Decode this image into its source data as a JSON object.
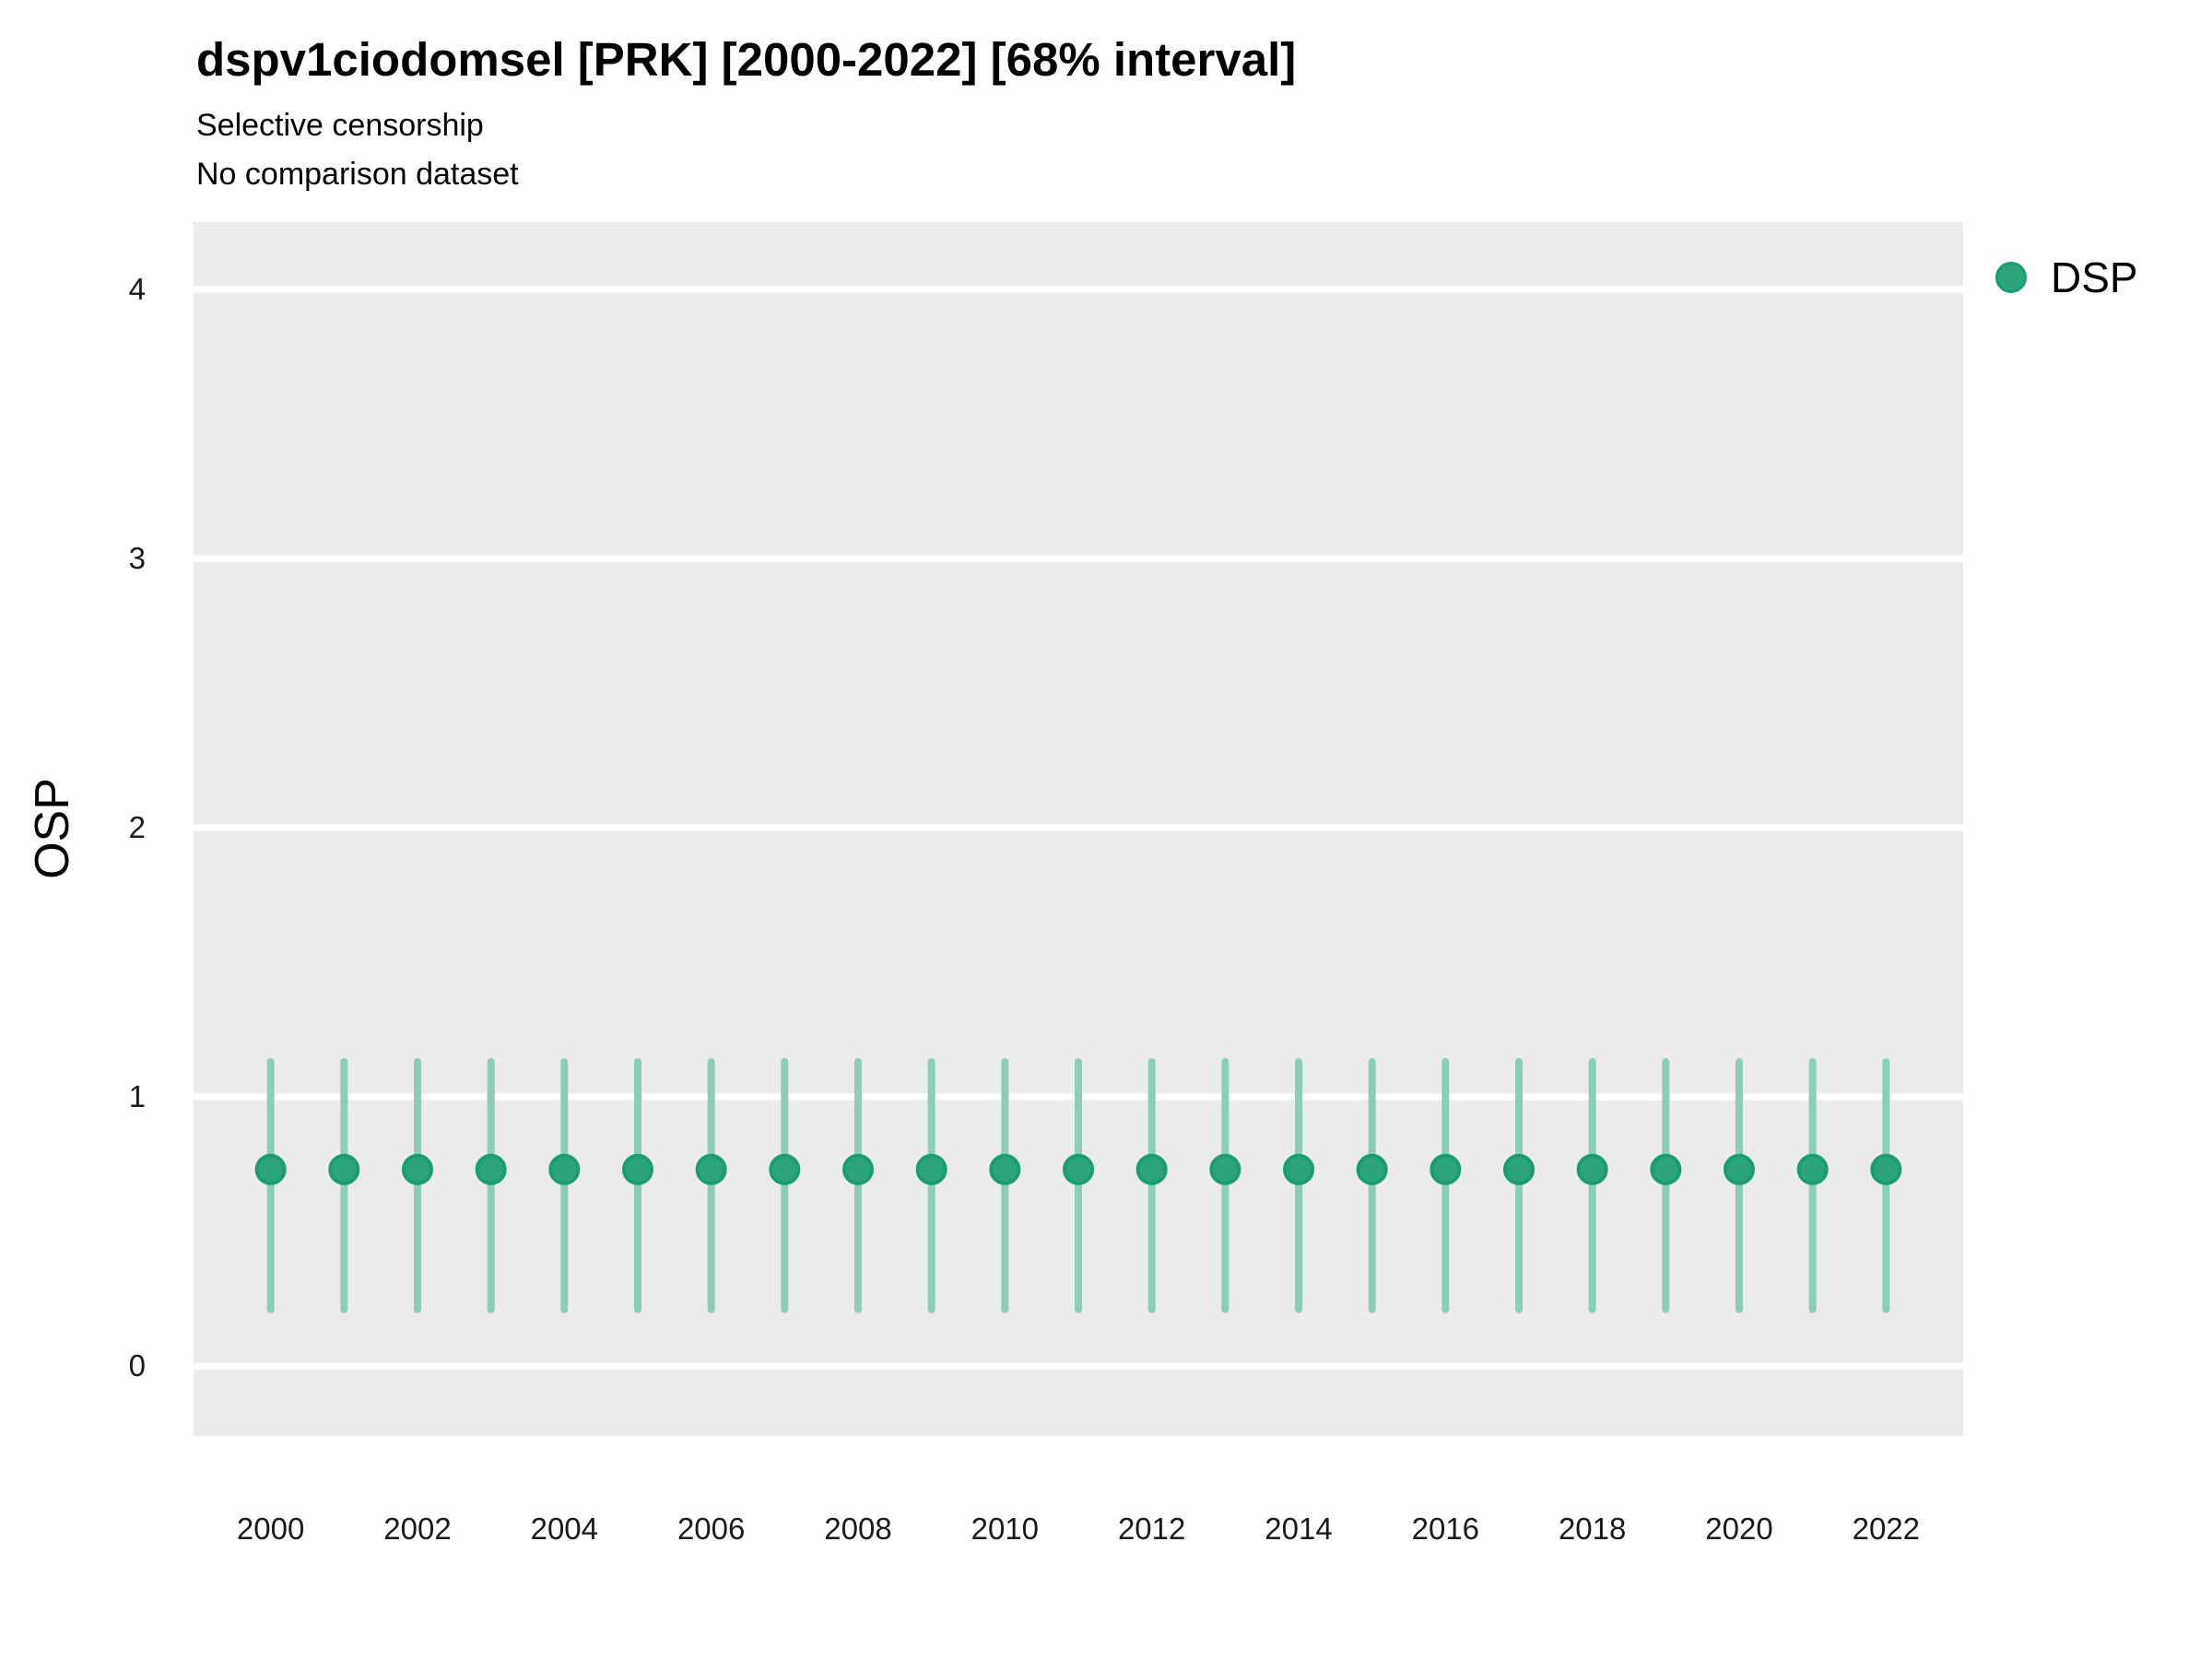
{
  "chart_data": {
    "type": "pointrange",
    "title": "dspv1ciodomsel [PRK] [2000-2022] [68% interval]",
    "subtitle_line1": "Selective censorship",
    "subtitle_line2": "No comparison dataset",
    "xlabel": "",
    "ylabel": "OSP",
    "x": [
      2000,
      2001,
      2002,
      2003,
      2004,
      2005,
      2006,
      2007,
      2008,
      2009,
      2010,
      2011,
      2012,
      2013,
      2014,
      2015,
      2016,
      2017,
      2018,
      2019,
      2020,
      2021,
      2022
    ],
    "series": [
      {
        "name": "DSP",
        "color": "#2ca57c",
        "point_stroke": "#1b9e6e",
        "range_color": "#8bceb4",
        "values": [
          0.73,
          0.73,
          0.73,
          0.73,
          0.73,
          0.73,
          0.73,
          0.73,
          0.73,
          0.73,
          0.73,
          0.73,
          0.73,
          0.73,
          0.73,
          0.73,
          0.73,
          0.73,
          0.73,
          0.73,
          0.73,
          0.73,
          0.73
        ],
        "lower": [
          0.21,
          0.21,
          0.21,
          0.21,
          0.21,
          0.21,
          0.21,
          0.21,
          0.21,
          0.21,
          0.21,
          0.21,
          0.21,
          0.21,
          0.21,
          0.21,
          0.21,
          0.21,
          0.21,
          0.21,
          0.21,
          0.21,
          0.21
        ],
        "upper": [
          1.13,
          1.13,
          1.13,
          1.13,
          1.13,
          1.13,
          1.13,
          1.13,
          1.13,
          1.13,
          1.13,
          1.13,
          1.13,
          1.13,
          1.13,
          1.13,
          1.13,
          1.13,
          1.13,
          1.13,
          1.13,
          1.13,
          1.13
        ]
      }
    ],
    "interval_label": "68% interval",
    "yticks": [
      0,
      1,
      2,
      3,
      4
    ],
    "xticks": [
      2000,
      2002,
      2004,
      2006,
      2008,
      2010,
      2012,
      2014,
      2016,
      2018,
      2020,
      2022
    ],
    "ylim": [
      -0.26,
      4.25
    ],
    "xlim": [
      1998.95,
      2023.05
    ],
    "grid": "horizontal-major-only",
    "legend_position": "right",
    "panel_bg": "#ebebeb",
    "grid_color": "#ffffff",
    "background": "#ffffff"
  }
}
